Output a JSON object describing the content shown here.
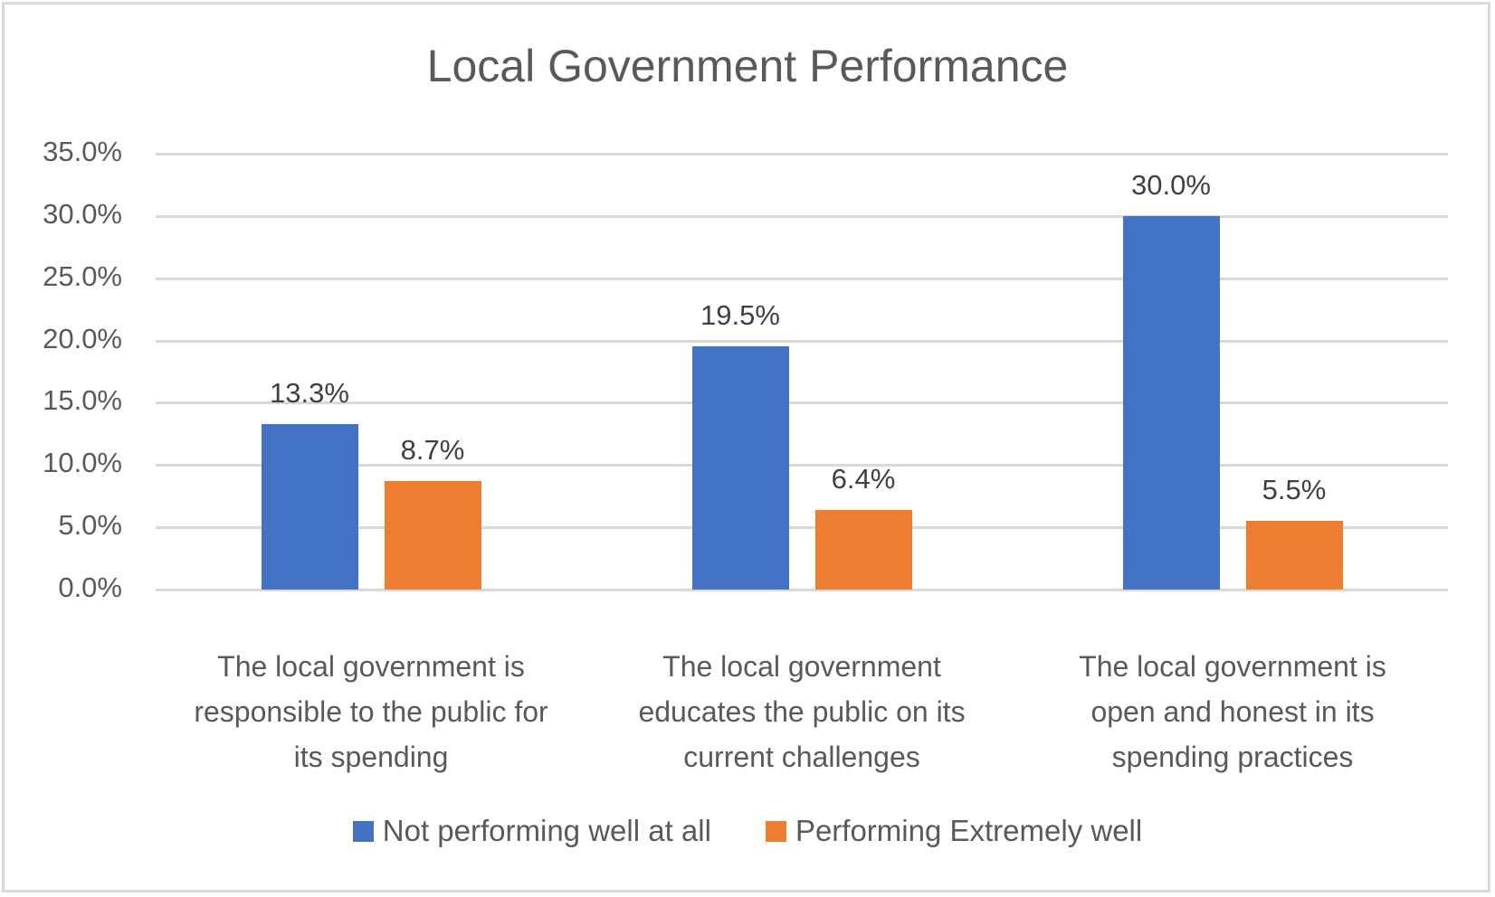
{
  "chart_data": {
    "type": "bar",
    "title": "Local Government Performance",
    "xlabel": "",
    "ylabel": "",
    "ylim": [
      0,
      35
    ],
    "yticks": [
      "0.0%",
      "5.0%",
      "10.0%",
      "15.0%",
      "20.0%",
      "25.0%",
      "30.0%",
      "35.0%"
    ],
    "grid": true,
    "legend_position": "bottom",
    "categories": [
      "The local government is responsible to the public for its spending",
      "The local government educates the public on its current challenges",
      "The local government is open and honest in its spending practices"
    ],
    "category_lines": [
      [
        "The local government is",
        "responsible to the public for",
        "its spending"
      ],
      [
        "The local government",
        "educates the public on its",
        "current challenges"
      ],
      [
        "The local government is",
        "open and honest in its",
        "spending practices"
      ]
    ],
    "series": [
      {
        "name": "Not performing well at all",
        "color": "#4472c4",
        "values": [
          13.3,
          19.5,
          30.0
        ],
        "labels": [
          "13.3%",
          "19.5%",
          "30.0%"
        ]
      },
      {
        "name": "Performing Extremely well",
        "color": "#ed7d31",
        "values": [
          8.7,
          6.4,
          5.5
        ],
        "labels": [
          "8.7%",
          "6.4%",
          "5.5%"
        ]
      }
    ]
  }
}
